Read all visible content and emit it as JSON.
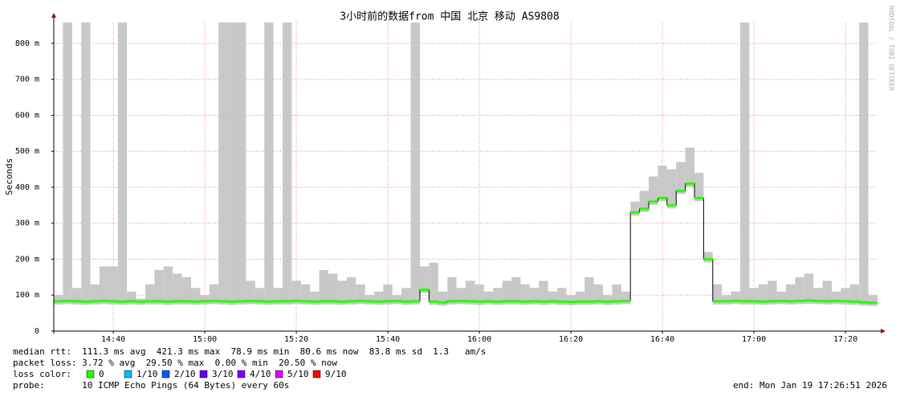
{
  "chart_data": {
    "type": "smoke",
    "title": "3小时前的数据from 中国 北京 移动 AS9808",
    "y_label": "Seconds",
    "watermark": "RRDTOOL / TOBI OETIKER",
    "xlim": [
      867,
      1047
    ],
    "xticks": [
      {
        "value": 880,
        "label": "14:40"
      },
      {
        "value": 900,
        "label": "15:00"
      },
      {
        "value": 920,
        "label": "15:20"
      },
      {
        "value": 940,
        "label": "15:40"
      },
      {
        "value": 960,
        "label": "16:00"
      },
      {
        "value": 980,
        "label": "16:20"
      },
      {
        "value": 1000,
        "label": "16:40"
      },
      {
        "value": 1020,
        "label": "17:00"
      },
      {
        "value": 1040,
        "label": "17:20"
      }
    ],
    "ylim": [
      0,
      0.858
    ],
    "yticks": [
      {
        "value": 0,
        "label": "0"
      },
      {
        "value": 0.1,
        "label": "100 m"
      },
      {
        "value": 0.2,
        "label": "200 m"
      },
      {
        "value": 0.3,
        "label": "300 m"
      },
      {
        "value": 0.4,
        "label": "400 m"
      },
      {
        "value": 0.5,
        "label": "500 m"
      },
      {
        "value": 0.6,
        "label": "600 m"
      },
      {
        "value": 0.7,
        "label": "700 m"
      },
      {
        "value": 0.8,
        "label": "800 m"
      }
    ],
    "grid": true,
    "color": "#26ff00",
    "smoke_color": "#c8c8c8",
    "x": [
      868,
      870,
      872,
      874,
      876,
      878,
      880,
      882,
      884,
      886,
      888,
      890,
      892,
      894,
      896,
      898,
      900,
      902,
      904,
      906,
      908,
      910,
      912,
      914,
      916,
      918,
      920,
      922,
      924,
      926,
      928,
      930,
      932,
      934,
      936,
      938,
      940,
      942,
      944,
      946,
      948,
      950,
      952,
      954,
      956,
      958,
      960,
      962,
      964,
      966,
      968,
      970,
      972,
      974,
      976,
      978,
      980,
      982,
      984,
      986,
      988,
      990,
      992,
      994,
      996,
      998,
      1000,
      1002,
      1004,
      1006,
      1008,
      1010,
      1012,
      1014,
      1016,
      1018,
      1020,
      1022,
      1024,
      1026,
      1028,
      1030,
      1032,
      1034,
      1036,
      1038,
      1040,
      1042,
      1044,
      1046
    ],
    "median": [
      0.083,
      0.084,
      0.083,
      0.082,
      0.083,
      0.084,
      0.083,
      0.082,
      0.083,
      0.082,
      0.083,
      0.083,
      0.082,
      0.083,
      0.083,
      0.082,
      0.083,
      0.084,
      0.083,
      0.082,
      0.083,
      0.084,
      0.083,
      0.082,
      0.083,
      0.083,
      0.084,
      0.083,
      0.082,
      0.083,
      0.083,
      0.082,
      0.083,
      0.084,
      0.083,
      0.082,
      0.083,
      0.084,
      0.082,
      0.083,
      0.115,
      0.082,
      0.08,
      0.083,
      0.084,
      0.083,
      0.082,
      0.083,
      0.082,
      0.083,
      0.083,
      0.082,
      0.083,
      0.082,
      0.083,
      0.082,
      0.081,
      0.082,
      0.082,
      0.083,
      0.082,
      0.083,
      0.084,
      0.33,
      0.34,
      0.36,
      0.37,
      0.35,
      0.39,
      0.41,
      0.37,
      0.2,
      0.083,
      0.083,
      0.084,
      0.083,
      0.083,
      0.082,
      0.083,
      0.084,
      0.083,
      0.084,
      0.085,
      0.084,
      0.083,
      0.084,
      0.083,
      0.082,
      0.08,
      0.079
    ],
    "smoke_high": [
      0.1,
      0.858,
      0.12,
      0.858,
      0.13,
      0.18,
      0.18,
      0.858,
      0.11,
      0.09,
      0.13,
      0.17,
      0.18,
      0.16,
      0.15,
      0.12,
      0.1,
      0.13,
      0.858,
      0.858,
      0.858,
      0.14,
      0.12,
      0.858,
      0.12,
      0.858,
      0.14,
      0.13,
      0.11,
      0.17,
      0.16,
      0.14,
      0.15,
      0.13,
      0.1,
      0.11,
      0.13,
      0.1,
      0.12,
      0.858,
      0.18,
      0.19,
      0.11,
      0.15,
      0.12,
      0.14,
      0.13,
      0.11,
      0.12,
      0.14,
      0.15,
      0.13,
      0.12,
      0.14,
      0.11,
      0.12,
      0.1,
      0.11,
      0.15,
      0.13,
      0.1,
      0.13,
      0.11,
      0.36,
      0.39,
      0.43,
      0.46,
      0.45,
      0.47,
      0.51,
      0.44,
      0.22,
      0.13,
      0.1,
      0.11,
      0.858,
      0.12,
      0.13,
      0.14,
      0.11,
      0.13,
      0.15,
      0.16,
      0.12,
      0.14,
      0.11,
      0.12,
      0.13,
      0.858,
      0.1
    ],
    "footer": {
      "median_rtt": "median rtt:  111.3 ms avg  421.3 ms max  78.9 ms min  80.6 ms now  83.8 ms sd  1.3   am/s",
      "packet_loss": "packet loss: 3.72 % avg  29.50 % max  0.00 % min  20.50 % now",
      "loss_color": "loss color:",
      "loss_legend": [
        {
          "label": "0",
          "color": "#26ff00"
        },
        {
          "label": "1/10",
          "color": "#00b8ff"
        },
        {
          "label": "2/10",
          "color": "#0059ff"
        },
        {
          "label": "3/10",
          "color": "#5e00ff"
        },
        {
          "label": "4/10",
          "color": "#7e00ff"
        },
        {
          "label": "5/10",
          "color": "#dd00ff"
        },
        {
          "label": "9/10",
          "color": "#ff0000"
        }
      ],
      "probe": "probe:       10 ICMP Echo Pings (64 Bytes) every 60s",
      "end": "end: Mon Jan 19 17:26:51 2026"
    }
  }
}
